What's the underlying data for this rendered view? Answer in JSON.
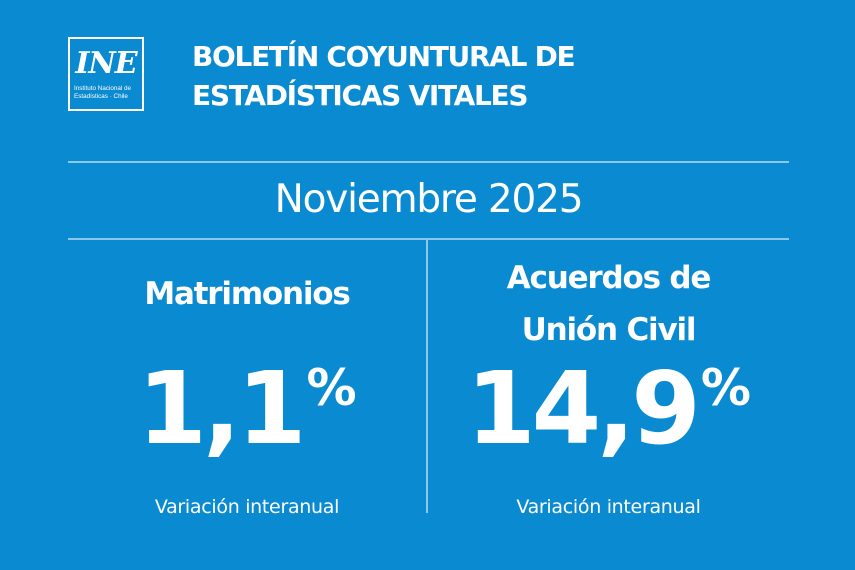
{
  "logo": {
    "mark": "INE",
    "line1": "Instituto Nacional de",
    "line2": "Estadísticas · Chile"
  },
  "header": {
    "title_line1": "BOLETÍN COYUNTURAL DE",
    "title_line2": "ESTADÍSTICAS VITALES"
  },
  "period": "Noviembre 2025",
  "metrics": [
    {
      "label_line1": "Matrimonios",
      "value": "1,1",
      "unit": "%",
      "caption": "Variación interanual"
    },
    {
      "label_line1": "Acuerdos de",
      "label_line2": "Unión Civil",
      "value": "14,9",
      "unit": "%",
      "caption": "Variación interanual"
    }
  ],
  "colors": {
    "background": "#0a8ad0",
    "text": "#ffffff",
    "rule": "#8cc7ea"
  }
}
